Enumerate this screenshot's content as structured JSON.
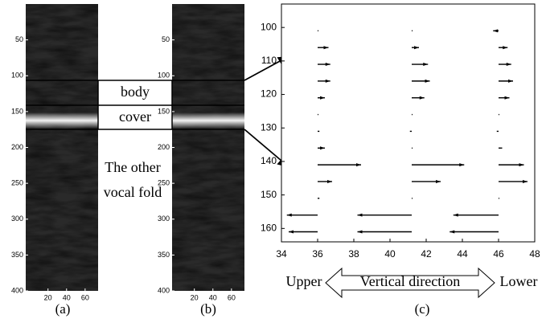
{
  "figure": {
    "panels": [
      {
        "label": "(a)",
        "xlim": [
          -4,
          74
        ],
        "ylim": [
          0,
          400
        ],
        "xticks": [
          20,
          40,
          60
        ],
        "yticks": [
          50,
          100,
          150,
          200,
          250,
          300,
          350,
          400
        ]
      },
      {
        "label": "(b)",
        "xlim": [
          -4,
          74
        ],
        "ylim": [
          0,
          400
        ],
        "xticks": [
          20,
          40,
          60
        ],
        "yticks": [
          50,
          100,
          150,
          200,
          250,
          300,
          350,
          400
        ]
      }
    ],
    "annotations": {
      "body": "body",
      "cover": "cover",
      "other": [
        "The other",
        "vocal fold"
      ]
    }
  },
  "chart_data": {
    "type": "quiver",
    "label": "(c)",
    "xlim": [
      34,
      48
    ],
    "ylim": [
      93,
      164
    ],
    "y_reversed": true,
    "xticks": [
      34,
      36,
      38,
      40,
      42,
      44,
      46,
      48
    ],
    "yticks": [
      100,
      110,
      120,
      130,
      140,
      150,
      160
    ],
    "color": "#000000",
    "series": [
      {
        "x": 36,
        "y": [
          101,
          106,
          111,
          116,
          121,
          126,
          131,
          136,
          141,
          146,
          151,
          156,
          161
        ],
        "u": [
          0,
          0.6,
          0.7,
          0.7,
          0.4,
          0,
          0.1,
          0.4,
          2.4,
          0.8,
          0.1,
          -1.7,
          -1.6
        ]
      },
      {
        "x": 41.2,
        "y": [
          101,
          106,
          111,
          116,
          121,
          126,
          131,
          136,
          141,
          146,
          151,
          156,
          161
        ],
        "u": [
          0,
          0.4,
          0.9,
          1.0,
          0.7,
          0,
          -0.1,
          0,
          2.9,
          1.6,
          0,
          -3.0,
          -3.0
        ]
      },
      {
        "x": 46,
        "y": [
          101,
          106,
          111,
          116,
          121,
          126,
          131,
          136,
          141,
          146,
          151,
          156,
          161
        ],
        "u": [
          -0.3,
          0.5,
          0.7,
          0.8,
          0.6,
          0,
          -0.1,
          0.2,
          1.4,
          1.6,
          0,
          -2.5,
          -2.7
        ]
      }
    ],
    "direction": {
      "left": "Upper",
      "middle": "Vertical direction",
      "right": "Lower"
    }
  }
}
